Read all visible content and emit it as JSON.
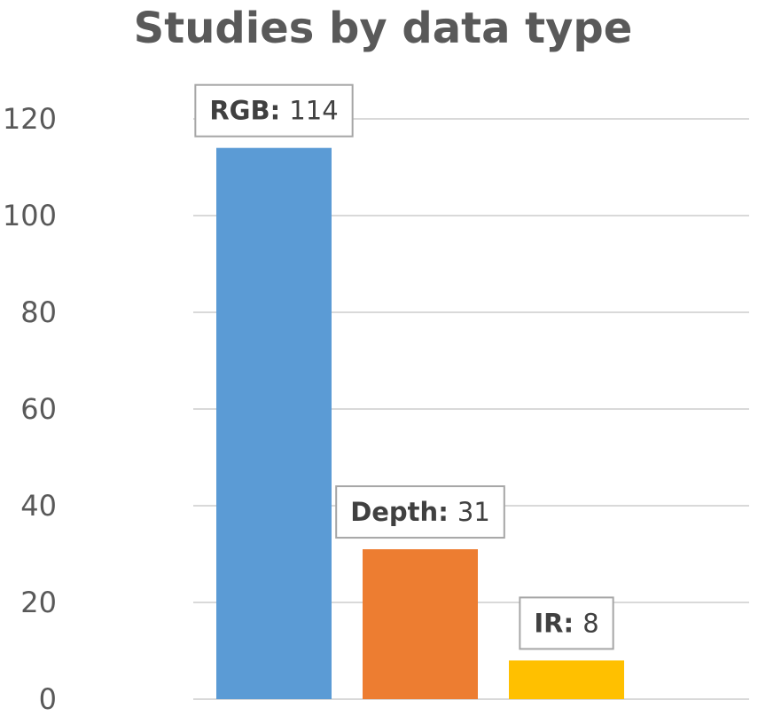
{
  "chart_data": {
    "type": "bar",
    "title": "Studies by data type",
    "xlabel": "",
    "ylabel": "",
    "categories": [
      "RGB",
      "Depth",
      "IR"
    ],
    "values": [
      114,
      31,
      8
    ],
    "colors": [
      "#5b9bd5",
      "#ed7d31",
      "#ffc000"
    ],
    "ylim": [
      0,
      120
    ],
    "yticks": [
      0,
      20,
      40,
      60,
      80,
      100,
      120
    ],
    "grid": true,
    "legend": "none",
    "data_labels": [
      {
        "category": "RGB",
        "separator": ": ",
        "value": "114"
      },
      {
        "category": "Depth",
        "separator": ": ",
        "value": "31"
      },
      {
        "category": "IR",
        "separator": ": ",
        "value": "8"
      }
    ]
  }
}
